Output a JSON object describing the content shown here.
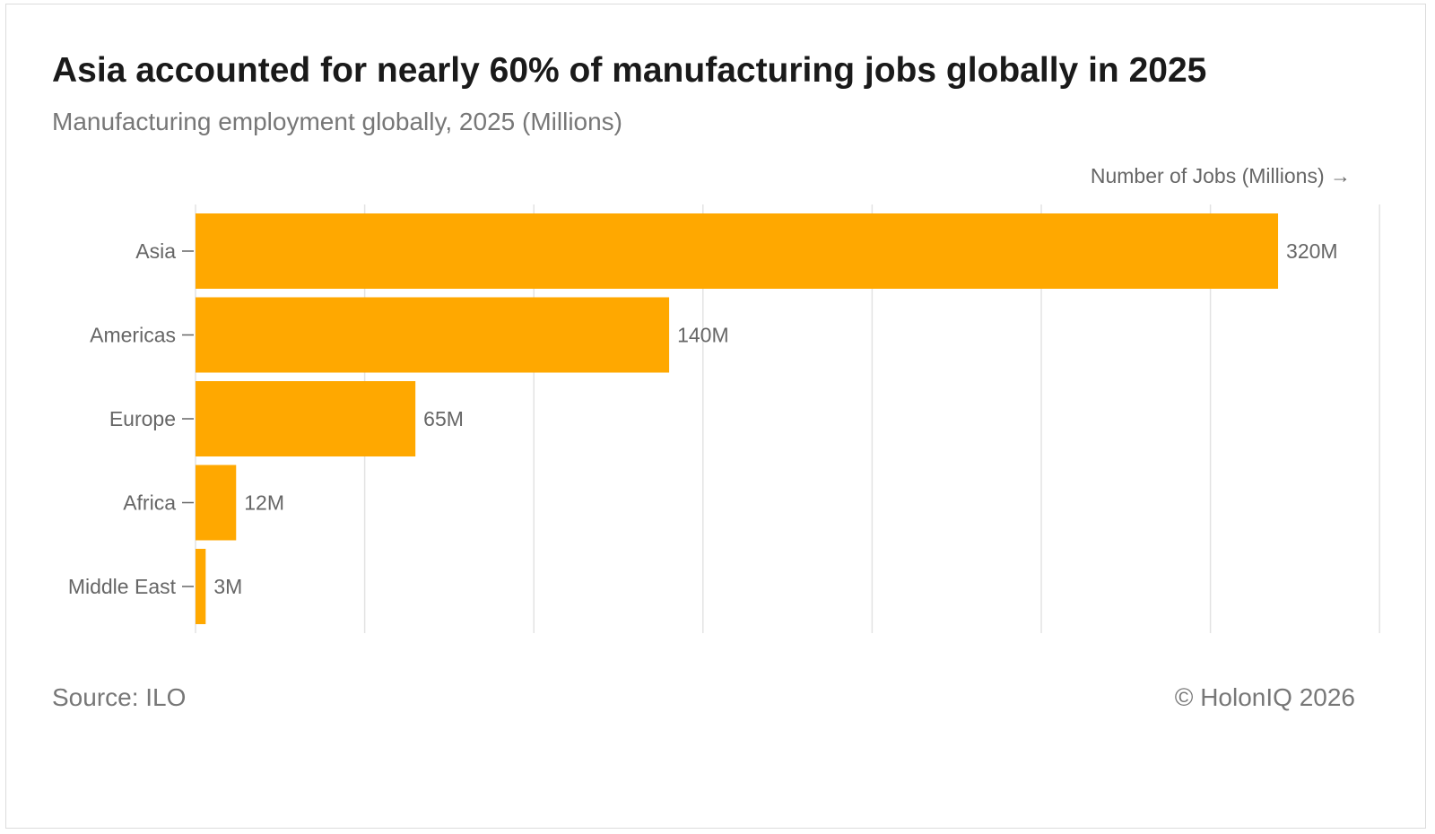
{
  "header": {
    "title": "Asia accounted for nearly 60% of manufacturing jobs globally in 2025",
    "subtitle": "Manufacturing employment globally, 2025 (Millions)"
  },
  "footer": {
    "source": "Source: ILO",
    "copyright": "© HolonIQ 2026"
  },
  "colors": {
    "bar": "#FFA800",
    "grid": "#e3e3e3",
    "label": "#666666"
  },
  "chart_data": {
    "type": "bar",
    "orientation": "horizontal",
    "categories": [
      "Asia",
      "Americas",
      "Europe",
      "Africa",
      "Middle East"
    ],
    "values": [
      320,
      140,
      65,
      12,
      3
    ],
    "data_labels": [
      "320M",
      "140M",
      "65M",
      "12M",
      "3M"
    ],
    "xlabel": "Number of Jobs (Millions) →",
    "ylabel": "",
    "xlim": [
      0,
      350
    ],
    "grid_step": 50,
    "grid": true,
    "legend": "none"
  }
}
